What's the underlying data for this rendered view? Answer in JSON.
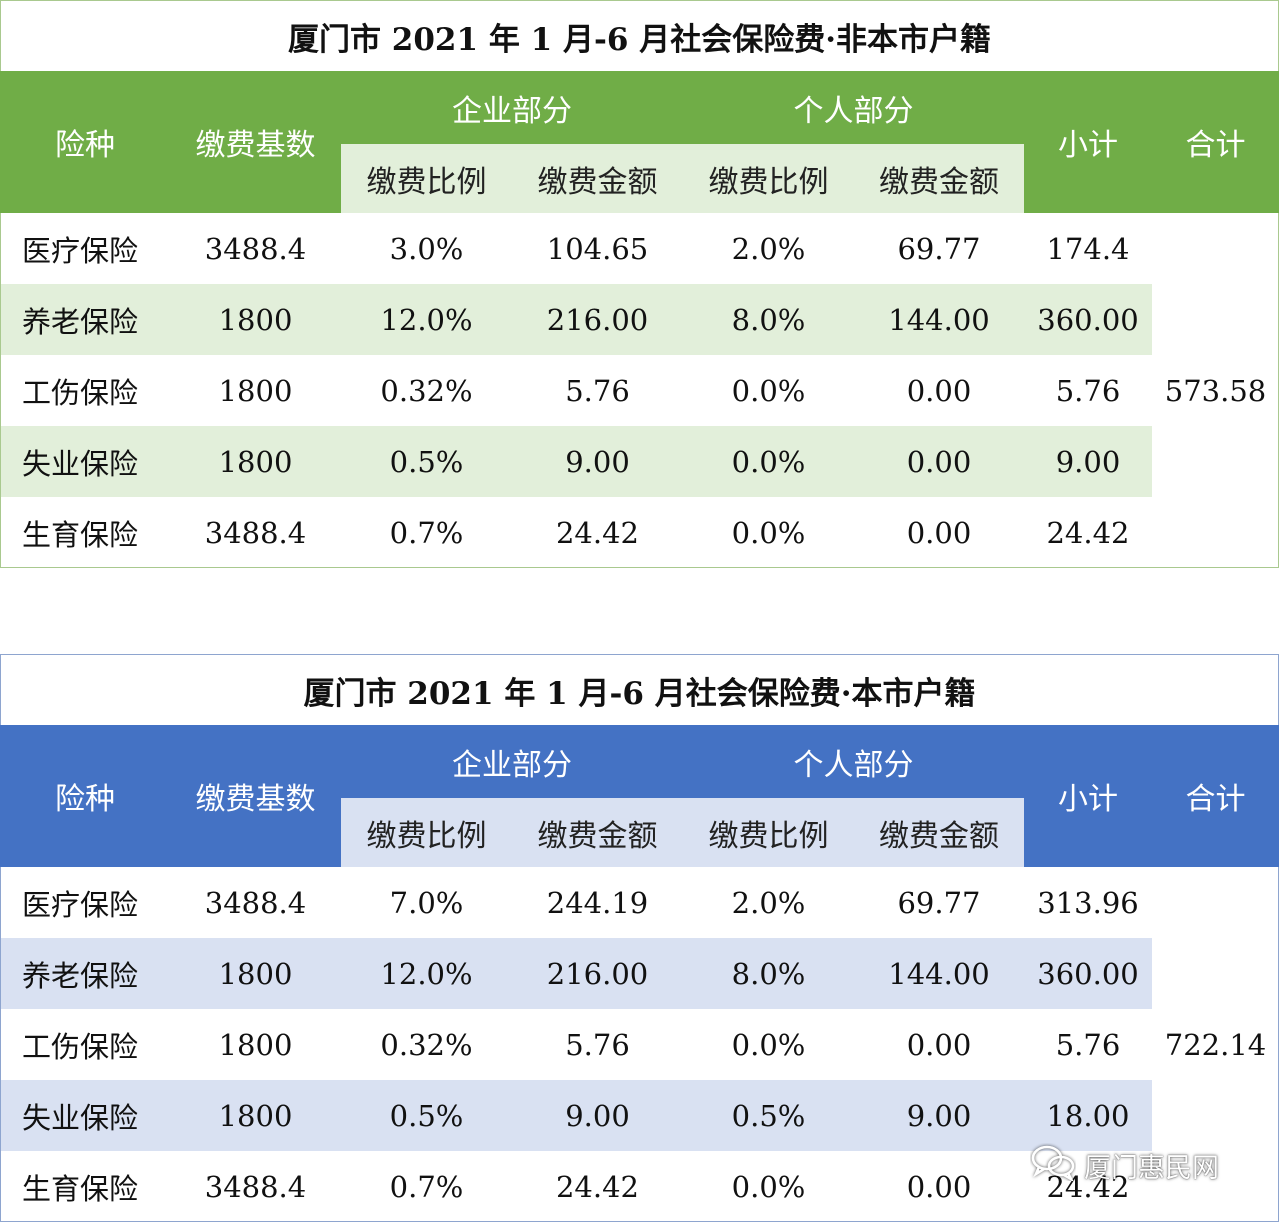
{
  "tables": [
    {
      "title": "厦门市 2021 年 1 月-6 月社会保险费·非本市户籍",
      "header": {
        "type": "险种",
        "base": "缴费基数",
        "enterprise": "企业部分",
        "personal": "个人部分",
        "rate": "缴费比例",
        "amount": "缴费金额",
        "rate2": "缴费比例",
        "amount2": "缴费金额",
        "subtotal": "小计",
        "total": "合计"
      },
      "rows": [
        {
          "type": "医疗保险",
          "base": "3488.4",
          "ent_rate": "3.0%",
          "ent_amount": "104.65",
          "per_rate": "2.0%",
          "per_amount": "69.77",
          "subtotal": "174.4"
        },
        {
          "type": "养老保险",
          "base": "1800",
          "ent_rate": "12.0%",
          "ent_amount": "216.00",
          "per_rate": "8.0%",
          "per_amount": "144.00",
          "subtotal": "360.00"
        },
        {
          "type": "工伤保险",
          "base": "1800",
          "ent_rate": "0.32%",
          "ent_amount": "5.76",
          "per_rate": "0.0%",
          "per_amount": "0.00",
          "subtotal": "5.76"
        },
        {
          "type": "失业保险",
          "base": "1800",
          "ent_rate": "0.5%",
          "ent_amount": "9.00",
          "per_rate": "0.0%",
          "per_amount": "0.00",
          "subtotal": "9.00"
        },
        {
          "type": "生育保险",
          "base": "3488.4",
          "ent_rate": "0.7%",
          "ent_amount": "24.42",
          "per_rate": "0.0%",
          "per_amount": "0.00",
          "subtotal": "24.42"
        }
      ],
      "total": "573.58",
      "colors": {
        "header_bg": "#70ad47",
        "sub_bg": "#e2efda",
        "stripe_bg": "#e2efda"
      }
    },
    {
      "title": "厦门市 2021 年 1 月-6 月社会保险费·本市户籍",
      "header": {
        "type": "险种",
        "base": "缴费基数",
        "enterprise": "企业部分",
        "personal": "个人部分",
        "rate": "缴费比例",
        "amount": "缴费金额",
        "rate2": "缴费比例",
        "amount2": "缴费金额",
        "subtotal": "小计",
        "total": "合计"
      },
      "rows": [
        {
          "type": "医疗保险",
          "base": "3488.4",
          "ent_rate": "7.0%",
          "ent_amount": "244.19",
          "per_rate": "2.0%",
          "per_amount": "69.77",
          "subtotal": "313.96"
        },
        {
          "type": "养老保险",
          "base": "1800",
          "ent_rate": "12.0%",
          "ent_amount": "216.00",
          "per_rate": "8.0%",
          "per_amount": "144.00",
          "subtotal": "360.00"
        },
        {
          "type": "工伤保险",
          "base": "1800",
          "ent_rate": "0.32%",
          "ent_amount": "5.76",
          "per_rate": "0.0%",
          "per_amount": "0.00",
          "subtotal": "5.76"
        },
        {
          "type": "失业保险",
          "base": "1800",
          "ent_rate": "0.5%",
          "ent_amount": "9.00",
          "per_rate": "0.5%",
          "per_amount": "9.00",
          "subtotal": "18.00"
        },
        {
          "type": "生育保险",
          "base": "3488.4",
          "ent_rate": "0.7%",
          "ent_amount": "24.42",
          "per_rate": "0.0%",
          "per_amount": "0.00",
          "subtotal": "24.42"
        }
      ],
      "total": "722.14",
      "colors": {
        "header_bg": "#4472c4",
        "sub_bg": "#d9e1f2",
        "stripe_bg": "#d9e1f2"
      }
    }
  ],
  "watermark": {
    "text": "厦门惠民网",
    "icon": "wechat-icon"
  }
}
